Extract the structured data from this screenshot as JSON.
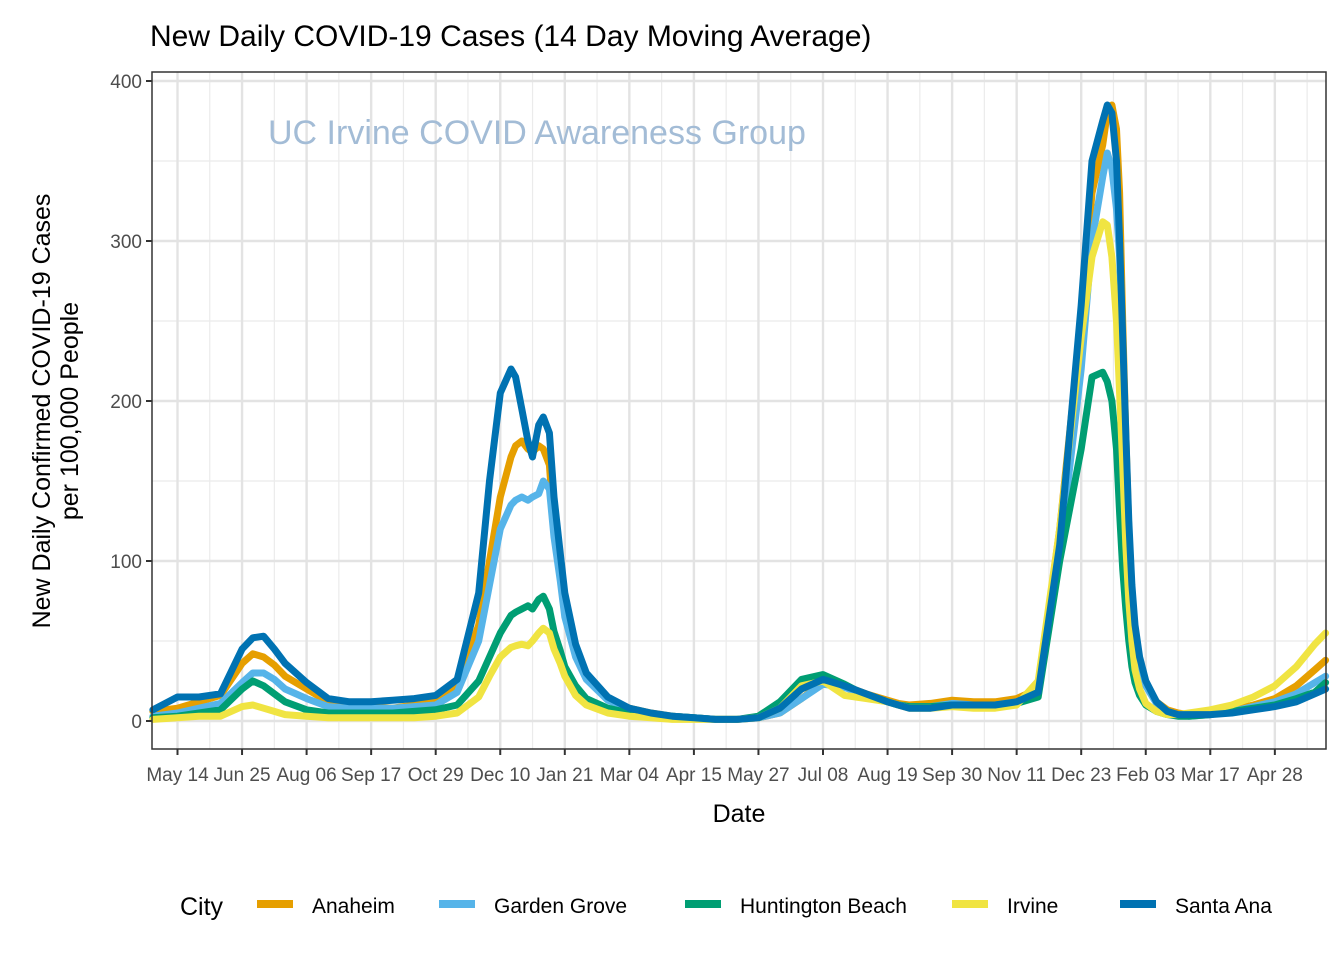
{
  "chart_data": {
    "type": "line",
    "title": "New Daily COVID-19  Cases (14 Day Moving Average)",
    "annotation": "UC Irvine COVID Awareness Group",
    "xlabel": "Date",
    "ylabel_lines": [
      "New Daily Confirmed COVID-19 Cases",
      "per 100,000 People"
    ],
    "ylim": [
      -20,
      405
    ],
    "xlim_days": [
      -16,
      747
    ],
    "x_unit": "days since May 14, 2020",
    "grid": true,
    "legend_position": "bottom",
    "legend_title": "City",
    "y_ticks": [
      0,
      100,
      200,
      300,
      400
    ],
    "y_tick_labels": [
      "0",
      "100",
      "200",
      "300",
      "400"
    ],
    "x_ticks_days": [
      0,
      42,
      84,
      126,
      168,
      210,
      252,
      294,
      336,
      378,
      420,
      462,
      504,
      546,
      588,
      630,
      672,
      714
    ],
    "x_tick_labels": [
      "May 14",
      "Jun 25",
      "Aug 06",
      "Sep 17",
      "Oct 29",
      "Dec 10",
      "Jan 21",
      "Mar 04",
      "Apr 15",
      "May 27",
      "Jul 08",
      "Aug 19",
      "Sep 30",
      "Nov 11",
      "Dec 23",
      "Feb 03",
      "Mar 17",
      "Apr 28"
    ],
    "x": [
      -16,
      0,
      14,
      28,
      42,
      49,
      56,
      63,
      70,
      84,
      98,
      112,
      126,
      140,
      154,
      168,
      182,
      196,
      203,
      210,
      217,
      220,
      224,
      228,
      231,
      235,
      238,
      242,
      245,
      249,
      252,
      259,
      266,
      280,
      294,
      308,
      322,
      336,
      350,
      364,
      378,
      392,
      406,
      420,
      434,
      448,
      462,
      469,
      476,
      490,
      504,
      518,
      532,
      546,
      560,
      574,
      588,
      595,
      602,
      605,
      608,
      611,
      613,
      615,
      617,
      619,
      621,
      623,
      626,
      630,
      637,
      644,
      651,
      658,
      672,
      686,
      700,
      714,
      728,
      740,
      747
    ],
    "series": [
      {
        "name": "Anaheim",
        "color": "#E69F00",
        "values": [
          6,
          8,
          12,
          16,
          36,
          42,
          40,
          35,
          28,
          20,
          12,
          10,
          9,
          8,
          10,
          12,
          22,
          60,
          100,
          140,
          165,
          172,
          175,
          170,
          168,
          172,
          170,
          160,
          120,
          90,
          70,
          42,
          28,
          14,
          8,
          5,
          3,
          2,
          1,
          1,
          2,
          5,
          14,
          24,
          22,
          17,
          13,
          11,
          10,
          11,
          13,
          12,
          12,
          14,
          20,
          120,
          250,
          330,
          360,
          380,
          385,
          370,
          330,
          250,
          180,
          120,
          80,
          55,
          38,
          24,
          12,
          7,
          5,
          4,
          5,
          7,
          10,
          14,
          22,
          32,
          38
        ]
      },
      {
        "name": "Garden Grove",
        "color": "#56B4E9",
        "values": [
          3,
          5,
          8,
          11,
          24,
          30,
          30,
          26,
          20,
          14,
          9,
          8,
          8,
          8,
          9,
          10,
          18,
          50,
          85,
          120,
          135,
          138,
          140,
          138,
          140,
          142,
          150,
          145,
          115,
          88,
          65,
          40,
          26,
          13,
          7,
          4,
          3,
          2,
          1,
          1,
          2,
          5,
          14,
          23,
          21,
          16,
          12,
          10,
          9,
          9,
          11,
          10,
          10,
          12,
          17,
          105,
          220,
          300,
          340,
          355,
          345,
          320,
          290,
          230,
          170,
          115,
          78,
          52,
          36,
          22,
          11,
          6,
          4,
          3,
          4,
          6,
          9,
          12,
          17,
          24,
          28
        ]
      },
      {
        "name": "Huntington Beach",
        "color": "#009E73",
        "values": [
          2,
          3,
          5,
          7,
          20,
          25,
          22,
          17,
          12,
          7,
          5,
          5,
          5,
          5,
          6,
          7,
          10,
          25,
          40,
          55,
          66,
          68,
          70,
          72,
          70,
          76,
          78,
          70,
          56,
          44,
          34,
          22,
          14,
          8,
          5,
          4,
          3,
          2,
          1,
          1,
          3,
          12,
          26,
          29,
          23,
          16,
          12,
          10,
          9,
          9,
          10,
          9,
          10,
          11,
          15,
          100,
          170,
          215,
          218,
          212,
          200,
          170,
          130,
          95,
          70,
          50,
          34,
          24,
          16,
          10,
          6,
          4,
          3,
          3,
          4,
          6,
          8,
          10,
          14,
          18,
          24
        ]
      },
      {
        "name": "Irvine",
        "color": "#F0E442",
        "values": [
          1,
          2,
          3,
          3,
          9,
          10,
          8,
          6,
          4,
          3,
          2,
          2,
          2,
          2,
          2,
          3,
          5,
          15,
          28,
          40,
          46,
          47,
          48,
          47,
          50,
          55,
          58,
          55,
          45,
          36,
          28,
          16,
          10,
          5,
          3,
          2,
          1,
          1,
          1,
          1,
          2,
          8,
          22,
          25,
          16,
          14,
          12,
          10,
          8,
          8,
          9,
          8,
          8,
          10,
          25,
          120,
          240,
          290,
          312,
          310,
          290,
          250,
          205,
          160,
          110,
          75,
          50,
          32,
          20,
          11,
          6,
          4,
          4,
          5,
          7,
          10,
          15,
          22,
          34,
          48,
          55
        ]
      },
      {
        "name": "Santa Ana",
        "color": "#0072B2",
        "values": [
          7,
          15,
          15,
          17,
          45,
          52,
          53,
          45,
          36,
          24,
          14,
          12,
          12,
          13,
          14,
          16,
          26,
          80,
          150,
          205,
          220,
          215,
          195,
          175,
          165,
          185,
          190,
          180,
          140,
          105,
          80,
          48,
          30,
          15,
          8,
          5,
          3,
          2,
          1,
          1,
          2,
          8,
          20,
          26,
          22,
          17,
          12,
          10,
          8,
          8,
          10,
          10,
          10,
          12,
          18,
          110,
          260,
          350,
          375,
          385,
          380,
          350,
          300,
          240,
          180,
          125,
          85,
          60,
          40,
          25,
          12,
          6,
          4,
          4,
          4,
          5,
          7,
          9,
          12,
          17,
          20
        ]
      }
    ]
  }
}
